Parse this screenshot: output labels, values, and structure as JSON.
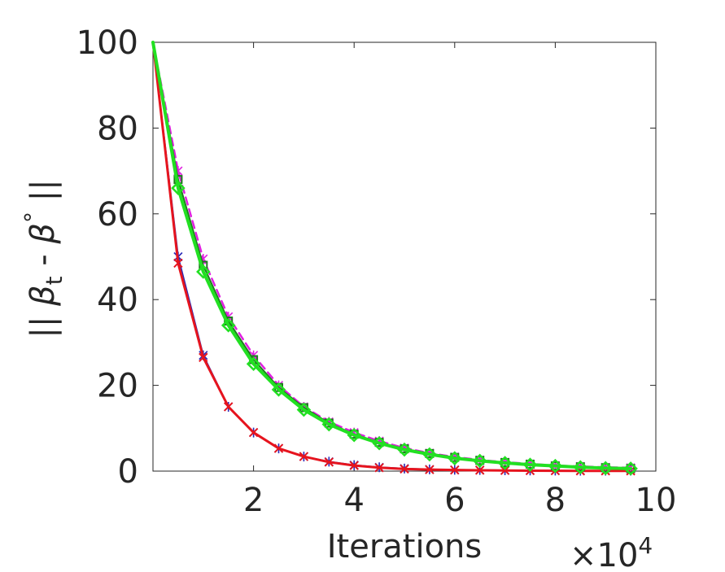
{
  "chart_data": {
    "type": "line",
    "title": "",
    "xlabel": "Iterations",
    "ylabel_parts": [
      "|| ",
      "β",
      "t",
      " - ",
      "β",
      "°",
      " ||"
    ],
    "x_multiplier": "×10",
    "x_multiplier_exp": "4",
    "xlim": [
      0,
      10
    ],
    "ylim": [
      0,
      100
    ],
    "xticks": [
      2,
      4,
      6,
      8,
      10
    ],
    "xtick_labels": [
      "2",
      "4",
      "6",
      "8",
      "10"
    ],
    "yticks": [
      0,
      20,
      40,
      60,
      80,
      100
    ],
    "ytick_labels": [
      "0",
      "20",
      "40",
      "60",
      "80",
      "100"
    ],
    "grid": false,
    "x": [
      0,
      0.5,
      1.0,
      1.5,
      2.0,
      2.5,
      3.0,
      3.5,
      4.0,
      4.5,
      5.0,
      5.5,
      6.0,
      6.5,
      7.0,
      7.5,
      8.0,
      8.5,
      9.0,
      9.5
    ],
    "series": [
      {
        "color": "#2a2ab8",
        "dash": "",
        "width": 2,
        "marker": "asterisk",
        "values": [
          100,
          50,
          27,
          15,
          9,
          5.3,
          3.4,
          2.2,
          1.4,
          0.9,
          0.6,
          0.4,
          0.3,
          0.25,
          0.2,
          0.15,
          0.12,
          0.1,
          0.1,
          0.1
        ]
      },
      {
        "color": "#e6141e",
        "dash": "",
        "width": 3,
        "marker": "x",
        "values": [
          100,
          48.5,
          26.5,
          15,
          9,
          5.3,
          3.4,
          2.1,
          1.3,
          0.8,
          0.5,
          0.35,
          0.25,
          0.2,
          0.15,
          0.1,
          0.08,
          0.05,
          0.05,
          0.05
        ]
      },
      {
        "color": "#e020e0",
        "dash": "9,6",
        "width": 2.5,
        "marker": "asterisk",
        "values": [
          100,
          70,
          49.5,
          36,
          27,
          20,
          15,
          11.5,
          9,
          7,
          5.4,
          4.2,
          3.3,
          2.6,
          2.1,
          1.7,
          1.3,
          1.1,
          0.9,
          0.8
        ]
      },
      {
        "color": "#1c7a1c",
        "dash": "",
        "width": 2,
        "marker": "square",
        "values": [
          100,
          68,
          48,
          35,
          26,
          19.5,
          14.8,
          11.2,
          8.6,
          6.7,
          5.2,
          4.1,
          3.2,
          2.5,
          2.0,
          1.6,
          1.2,
          1.0,
          0.8,
          0.6
        ]
      },
      {
        "color": "#22e022",
        "dash": "",
        "width": 4,
        "marker": "diamond",
        "values": [
          100,
          66,
          46.5,
          34,
          25,
          19,
          14.3,
          10.9,
          8.4,
          6.5,
          5.0,
          3.9,
          3.0,
          2.4,
          1.9,
          1.5,
          1.2,
          0.9,
          0.7,
          0.6
        ]
      }
    ]
  }
}
